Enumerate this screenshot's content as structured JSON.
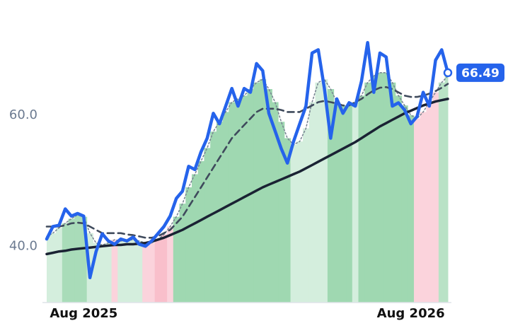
{
  "chart_data": {
    "type": "line",
    "categories": [
      null,
      null,
      null,
      null,
      null,
      null,
      "Aug 2025",
      null,
      null,
      null,
      null,
      null,
      null,
      null,
      null,
      null,
      null,
      null,
      null,
      null,
      null,
      null,
      null,
      null,
      null,
      null,
      null,
      null,
      null,
      null,
      null,
      null,
      null,
      null,
      null,
      null,
      null,
      null,
      null,
      null,
      null,
      null,
      null,
      null,
      null,
      null,
      null,
      null,
      null,
      null,
      null,
      null,
      null,
      null,
      null,
      null,
      null,
      null,
      null,
      "Aug 2026",
      null,
      null,
      null,
      null,
      null,
      null
    ],
    "ylim": [
      31.4,
      77.6
    ],
    "yticks": [
      {
        "value": 40,
        "label": "40.0"
      },
      {
        "value": 60,
        "label": "60.0"
      }
    ],
    "series": [
      {
        "color": "#2563eb",
        "style": "solid",
        "values": [
          41.1,
          43.0,
          43.2,
          45.7,
          44.6,
          45.0,
          44.6,
          35.2,
          39.2,
          41.9,
          40.8,
          40.3,
          41.1,
          40.8,
          41.4,
          40.3,
          40.0,
          40.8,
          41.9,
          43.0,
          44.6,
          47.3,
          48.4,
          52.2,
          51.7,
          54.4,
          56.5,
          60.3,
          58.7,
          61.4,
          64.1,
          61.4,
          64.1,
          63.5,
          67.9,
          66.8,
          60.3,
          57.6,
          54.9,
          52.7,
          56.0,
          58.7,
          61.4,
          69.5,
          70.0,
          64.1,
          56.5,
          62.5,
          60.3,
          61.9,
          61.4,
          65.2,
          71.1,
          63.5,
          69.5,
          68.9,
          61.4,
          61.9,
          60.8,
          58.7,
          59.8,
          63.5,
          61.4,
          68.4,
          70.0,
          66.49
        ]
      },
      {
        "color": "#7b8794",
        "style": "dotted",
        "values": [
          41.5,
          42,
          42.8,
          43.5,
          44.2,
          44.8,
          44.5,
          42,
          40.5,
          40.2,
          40.5,
          41,
          40.8,
          40.9,
          41,
          40.8,
          40.5,
          40.5,
          41,
          41.8,
          43,
          44.5,
          46.5,
          49,
          51,
          53,
          55,
          57.5,
          59,
          60.5,
          62,
          62.5,
          63,
          64,
          65,
          65.5,
          64,
          62,
          59,
          56.5,
          55.5,
          56,
          58,
          62,
          65,
          65.5,
          64,
          62,
          61.5,
          61.5,
          62,
          63,
          65,
          66,
          66.5,
          66.5,
          65,
          63,
          61.5,
          60,
          59.5,
          60.5,
          62,
          63.5,
          65,
          66
        ],
        "fill_colors": [
          "#d4eedd",
          "#d4eedd",
          "#d4eedd",
          "#a9dcb9",
          "#a9dcb9",
          "#a9dcb9",
          "#a9dcb9",
          "#d4eedd",
          "#d4eedd",
          "#d4eedd",
          "#d4eedd",
          "#fbd3dc",
          "#d4eedd",
          "#d4eedd",
          "#d4eedd",
          "#d4eedd",
          "#fbd3dc",
          "#fbd3dc",
          "#f9bfcb",
          "#f9bfcb",
          "#fbd3dc",
          "#9fd8b1",
          "#9fd8b1",
          "#9fd8b1",
          "#9fd8b1",
          "#9fd8b1",
          "#9fd8b1",
          "#9fd8b1",
          "#9fd8b1",
          "#9fd8b1",
          "#9fd8b1",
          "#9fd8b1",
          "#9fd8b1",
          "#9fd8b1",
          "#9fd8b1",
          "#9fd8b1",
          "#9fd8b1",
          "#9fd8b1",
          "#9fd8b1",
          "#9fd8b1",
          "#d4eedd",
          "#d4eedd",
          "#d4eedd",
          "#d4eedd",
          "#d4eedd",
          "#d4eedd",
          "#9fd8b1",
          "#9fd8b1",
          "#9fd8b1",
          "#9fd8b1",
          "#d4eedd",
          "#9fd8b1",
          "#9fd8b1",
          "#9fd8b1",
          "#9fd8b1",
          "#9fd8b1",
          "#9fd8b1",
          "#9fd8b1",
          "#9fd8b1",
          "#9fd8b1",
          "#fbd3dc",
          "#fbd3dc",
          "#fbd3dc",
          "#fbd3dc",
          "#b9e2c6",
          "#b9e2c6"
        ]
      },
      {
        "color": "#3f4a5c",
        "style": "dashed",
        "values": [
          43,
          43,
          43,
          43.2,
          43.5,
          43.6,
          43.5,
          43,
          42.5,
          42,
          42,
          42,
          42,
          41.8,
          41.7,
          41.5,
          41.3,
          41.3,
          41.5,
          42,
          42.5,
          43.5,
          44.5,
          46,
          47.5,
          49,
          50.5,
          52,
          53.5,
          55,
          56.5,
          57.5,
          58.5,
          59.5,
          60.5,
          61,
          61,
          61,
          60.8,
          60.5,
          60.5,
          60.5,
          61,
          61.5,
          62,
          62.2,
          62,
          61.8,
          61.5,
          61.5,
          62,
          62.5,
          63.2,
          63.8,
          64.2,
          64.3,
          64,
          63.5,
          63,
          62.8,
          62.8,
          63,
          63.3,
          63.7,
          64.2,
          64.8
        ]
      },
      {
        "color": "#1a2233",
        "style": "solid",
        "values": [
          38.8,
          39,
          39.2,
          39.3,
          39.5,
          39.6,
          39.7,
          39.8,
          39.9,
          40,
          40.1,
          40.2,
          40.2,
          40.3,
          40.3,
          40.4,
          40.5,
          40.7,
          41,
          41.3,
          41.7,
          42.1,
          42.5,
          43,
          43.5,
          44,
          44.5,
          45,
          45.5,
          46,
          46.5,
          47,
          47.5,
          48,
          48.5,
          49,
          49.4,
          49.8,
          50.2,
          50.6,
          51,
          51.4,
          51.9,
          52.4,
          52.9,
          53.4,
          53.9,
          54.4,
          54.9,
          55.4,
          55.9,
          56.5,
          57.1,
          57.7,
          58.3,
          58.8,
          59.3,
          59.8,
          60.3,
          60.7,
          61.1,
          61.5,
          61.8,
          62.1,
          62.3,
          62.5
        ]
      }
    ]
  }
}
